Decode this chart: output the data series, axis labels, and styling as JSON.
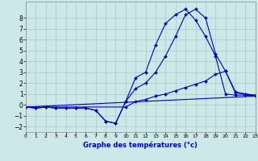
{
  "xlabel": "Graphe des températures (°c)",
  "background_color": "#cce8e8",
  "grid_color": "#aac8c8",
  "line_color": "#0000bb",
  "xlim": [
    0,
    23
  ],
  "ylim": [
    -2.5,
    9.5
  ],
  "xticks": [
    0,
    1,
    2,
    3,
    4,
    5,
    6,
    7,
    8,
    9,
    10,
    11,
    12,
    13,
    14,
    15,
    16,
    17,
    18,
    19,
    20,
    21,
    22,
    23
  ],
  "yticks": [
    -2,
    -1,
    0,
    1,
    2,
    3,
    4,
    5,
    6,
    7,
    8
  ],
  "figsize": [
    3.2,
    2.0
  ],
  "dpi": 100,
  "line1_x": [
    0,
    1,
    2,
    3,
    4,
    5,
    6,
    7,
    8,
    9,
    10,
    11,
    12,
    13,
    14,
    15,
    16,
    17,
    18,
    19,
    20,
    21,
    22,
    23
  ],
  "line1_y": [
    -0.2,
    -0.3,
    -0.2,
    -0.3,
    -0.3,
    -0.3,
    -0.3,
    -0.5,
    -1.5,
    -1.7,
    0.3,
    2.5,
    3.0,
    5.5,
    7.5,
    8.3,
    8.8,
    7.8,
    6.3,
    4.5,
    1.0,
    0.9,
    0.9,
    0.8
  ],
  "line2_x": [
    0,
    1,
    2,
    3,
    4,
    5,
    6,
    7,
    8,
    9,
    10,
    11,
    12,
    13,
    14,
    15,
    16,
    17,
    18,
    19,
    20,
    21,
    22,
    23
  ],
  "line2_y": [
    -0.2,
    -0.3,
    -0.2,
    -0.3,
    -0.3,
    -0.3,
    -0.3,
    -0.5,
    -1.5,
    -1.7,
    0.3,
    1.5,
    2.0,
    3.0,
    4.5,
    6.3,
    8.3,
    8.8,
    8.0,
    4.7,
    3.1,
    1.1,
    1.0,
    0.8
  ],
  "line3_x": [
    0,
    10,
    11,
    12,
    13,
    14,
    15,
    16,
    17,
    18,
    19,
    20,
    21,
    22,
    23
  ],
  "line3_y": [
    -0.2,
    -0.2,
    0.3,
    0.5,
    0.8,
    1.0,
    1.3,
    1.6,
    1.9,
    2.2,
    2.8,
    3.1,
    1.2,
    1.0,
    0.9
  ],
  "line4_x": [
    0,
    23
  ],
  "line4_y": [
    -0.2,
    0.8
  ]
}
